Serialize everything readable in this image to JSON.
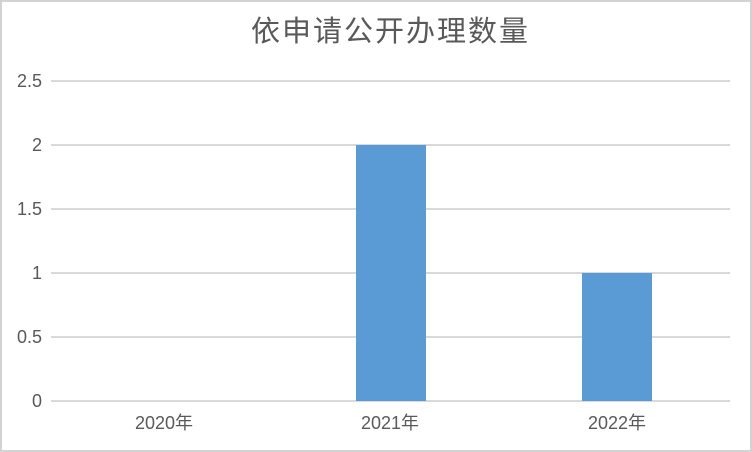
{
  "chart_data": {
    "type": "bar",
    "title": "依申请公开办理数量",
    "categories": [
      "2020年",
      "2021年",
      "2022年"
    ],
    "values": [
      0,
      2,
      1
    ],
    "xlabel": "",
    "ylabel": "",
    "ylim": [
      0,
      2.5
    ],
    "yticks": [
      0,
      0.5,
      1,
      1.5,
      2,
      2.5
    ],
    "ytick_labels": [
      "0",
      "0.5",
      "1",
      "1.5",
      "2",
      "2.5"
    ],
    "grid": true,
    "legend_position": "none",
    "bar_color": "#5b9bd5",
    "gridline_color": "#d9d9d9",
    "label_color": "#595959",
    "title_color": "#595959",
    "background_color": "#ffffff",
    "border_color": "#d2d2d2"
  }
}
